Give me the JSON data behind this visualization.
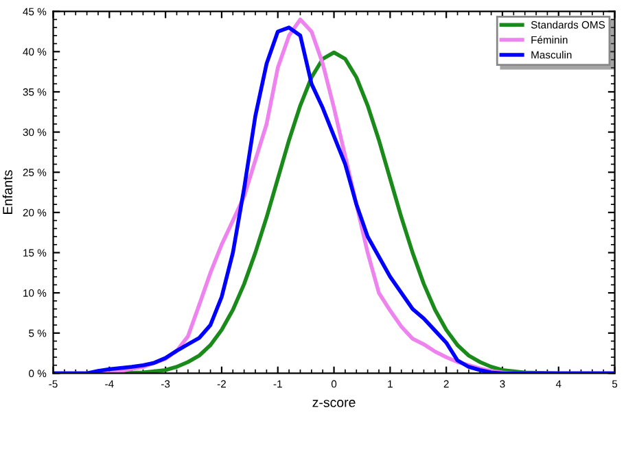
{
  "chart_data": {
    "type": "line",
    "xlabel": "z-score",
    "ylabel": "Enfants",
    "xlim": [
      -5,
      5
    ],
    "xticks": [
      -5,
      -4,
      -3,
      -2,
      -1,
      0,
      1,
      2,
      3,
      4,
      5
    ],
    "ylim": [
      0,
      45
    ],
    "yticks": [
      {
        "value": 0,
        "label": "0 %"
      },
      {
        "value": 5,
        "label": "5 %"
      },
      {
        "value": 10,
        "label": "10 %"
      },
      {
        "value": 15,
        "label": "15 %"
      },
      {
        "value": 20,
        "label": "20 %"
      },
      {
        "value": 25,
        "label": "25 %"
      },
      {
        "value": 30,
        "label": "30 %"
      },
      {
        "value": 35,
        "label": "35 %"
      },
      {
        "value": 40,
        "label": "40 %"
      },
      {
        "value": 45,
        "label": "45 %"
      }
    ],
    "grid": false,
    "legend": "top right",
    "series": [
      {
        "name": "Standards OMS",
        "color": "#1a8a1a",
        "x": [
          -5,
          -4,
          -3.4,
          -3,
          -2.8,
          -2.6,
          -2.4,
          -2.2,
          -2,
          -1.8,
          -1.6,
          -1.4,
          -1.2,
          -1,
          -0.8,
          -0.6,
          -0.4,
          -0.2,
          0,
          0.2,
          0.4,
          0.6,
          0.8,
          1,
          1.2,
          1.4,
          1.6,
          1.8,
          2,
          2.2,
          2.4,
          2.6,
          2.8,
          3,
          3.4,
          4,
          5
        ],
        "values": [
          0,
          0,
          0.1,
          0.4,
          0.8,
          1.4,
          2.2,
          3.5,
          5.4,
          7.9,
          11.1,
          15.0,
          19.4,
          24.2,
          29.0,
          33.3,
          36.8,
          39.1,
          39.9,
          39.1,
          36.8,
          33.3,
          29.0,
          24.2,
          19.4,
          15.0,
          11.1,
          7.9,
          5.4,
          3.5,
          2.2,
          1.4,
          0.8,
          0.4,
          0.1,
          0,
          0
        ]
      },
      {
        "name": "Féminin",
        "color": "#ee82ee",
        "x": [
          -5,
          -4,
          -3.8,
          -3.4,
          -3,
          -2.8,
          -2.6,
          -2.4,
          -2.2,
          -2,
          -1.8,
          -1.6,
          -1.4,
          -1.2,
          -1,
          -0.8,
          -0.6,
          -0.4,
          -0.2,
          0,
          0.2,
          0.4,
          0.6,
          0.8,
          1,
          1.2,
          1.4,
          1.6,
          1.8,
          2,
          2.2,
          2.4,
          2.6,
          2.8,
          3,
          3.2,
          5
        ],
        "values": [
          0,
          0,
          0.3,
          0.8,
          1.8,
          2.8,
          4.6,
          8.5,
          12.5,
          16,
          19,
          22,
          26.5,
          31,
          38,
          42,
          44,
          42.5,
          38.5,
          33,
          27,
          21,
          15,
          10,
          7.8,
          5.8,
          4.3,
          3.6,
          2.7,
          2.0,
          1.4,
          1.0,
          0.6,
          0.3,
          0.1,
          0,
          0
        ]
      },
      {
        "name": "Masculin",
        "color": "#0000ff",
        "x": [
          -5,
          -4.4,
          -4.2,
          -4,
          -3.6,
          -3.4,
          -3.2,
          -3,
          -2.8,
          -2.6,
          -2.4,
          -2.2,
          -2,
          -1.8,
          -1.6,
          -1.4,
          -1.2,
          -1,
          -0.8,
          -0.6,
          -0.4,
          -0.2,
          0,
          0.2,
          0.4,
          0.6,
          0.8,
          1,
          1.2,
          1.4,
          1.6,
          1.8,
          2,
          2.2,
          2.4,
          2.6,
          2.8,
          3,
          5
        ],
        "values": [
          0,
          0,
          0.3,
          0.5,
          0.8,
          1.0,
          1.3,
          1.9,
          2.8,
          3.6,
          4.4,
          6.0,
          9.5,
          15,
          23,
          32,
          38.5,
          42.5,
          43,
          42,
          36,
          33,
          29.5,
          26,
          21,
          17,
          14.5,
          12,
          10,
          8.0,
          6.8,
          5.3,
          3.8,
          1.6,
          0.8,
          0.4,
          0.1,
          0,
          0
        ]
      }
    ]
  }
}
